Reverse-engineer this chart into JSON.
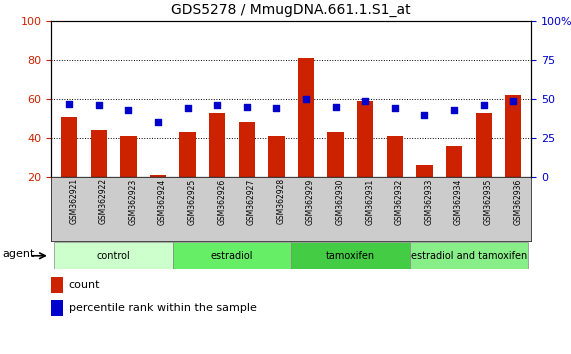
{
  "title": "GDS5278 / MmugDNA.661.1.S1_at",
  "samples": [
    "GSM362921",
    "GSM362922",
    "GSM362923",
    "GSM362924",
    "GSM362925",
    "GSM362926",
    "GSM362927",
    "GSM362928",
    "GSM362929",
    "GSM362930",
    "GSM362931",
    "GSM362932",
    "GSM362933",
    "GSM362934",
    "GSM362935",
    "GSM362936"
  ],
  "counts": [
    51,
    44,
    41,
    21,
    43,
    53,
    48,
    41,
    81,
    43,
    59,
    41,
    26,
    36,
    53,
    62
  ],
  "percentile_ranks": [
    47,
    46,
    43,
    35,
    44,
    46,
    45,
    44,
    50,
    45,
    49,
    44,
    40,
    43,
    46,
    49
  ],
  "groups": [
    {
      "label": "control",
      "start": 0,
      "end": 4,
      "color": "#ccffcc"
    },
    {
      "label": "estradiol",
      "start": 4,
      "end": 8,
      "color": "#66ee66"
    },
    {
      "label": "tamoxifen",
      "start": 8,
      "end": 12,
      "color": "#44cc44"
    },
    {
      "label": "estradiol and tamoxifen",
      "start": 12,
      "end": 16,
      "color": "#88ee88"
    }
  ],
  "bar_color": "#cc2200",
  "dot_color": "#0000cc",
  "ylim_left": [
    20,
    100
  ],
  "ylim_right": [
    0,
    100
  ],
  "yticks_left": [
    20,
    40,
    60,
    80,
    100
  ],
  "yticks_right": [
    0,
    25,
    50,
    75,
    100
  ],
  "yticklabels_right": [
    "0",
    "25",
    "50",
    "75",
    "100%"
  ],
  "grid_values": [
    40,
    60,
    80
  ],
  "agent_label": "agent",
  "legend_count": "count",
  "legend_percentile": "percentile rank within the sample",
  "title_fontsize": 10,
  "axis_label_color_left": "#cc2200",
  "axis_label_color_right": "#0000cc",
  "tick_label_bg": "#cccccc",
  "bar_width": 0.55
}
